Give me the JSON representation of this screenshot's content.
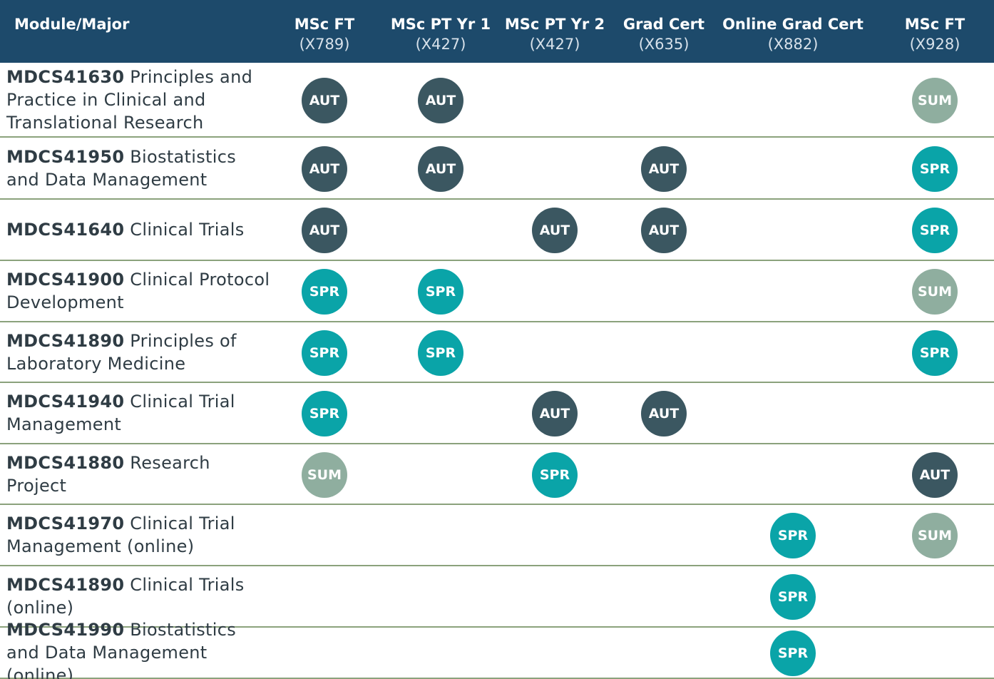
{
  "header": {
    "title": "Module/Major",
    "columns": [
      {
        "name": "MSc FT",
        "code": "(X789)"
      },
      {
        "name": "MSc PT Yr 1",
        "code": "(X427)"
      },
      {
        "name": "MSc PT Yr 2",
        "code": "(X427)"
      },
      {
        "name": "Grad Cert",
        "code": "(X635)"
      },
      {
        "name": "Online Grad Cert",
        "code": "(X882)"
      },
      {
        "name": "MSc FT",
        "code": "(X928)"
      }
    ]
  },
  "table": {
    "rows": [
      {
        "code": "MDCS41630",
        "title": "Principles and Practice in Clinical and Translational Research",
        "cells": [
          "AUT",
          "AUT",
          null,
          null,
          null,
          "SUM"
        ]
      },
      {
        "code": "MDCS41950",
        "title": "Biostatistics and Data Management",
        "cells": [
          "AUT",
          "AUT",
          null,
          "AUT",
          null,
          "SPR"
        ]
      },
      {
        "code": "MDCS41640",
        "title": "Clinical Trials",
        "cells": [
          "AUT",
          null,
          "AUT",
          "AUT",
          null,
          "SPR"
        ]
      },
      {
        "code": "MDCS41900",
        "title": "Clinical Protocol Development",
        "cells": [
          "SPR",
          "SPR",
          null,
          null,
          null,
          "SUM"
        ]
      },
      {
        "code": "MDCS41890",
        "title": "Principles of Laboratory Medicine",
        "cells": [
          "SPR",
          "SPR",
          null,
          null,
          null,
          "SPR"
        ]
      },
      {
        "code": "MDCS41940",
        "title": "Clinical Trial Management",
        "cells": [
          "SPR",
          null,
          "AUT",
          "AUT",
          null,
          null
        ]
      },
      {
        "code": "MDCS41880",
        "title": "Research Project",
        "cells": [
          "SUM",
          null,
          "SPR",
          null,
          null,
          "AUT"
        ]
      },
      {
        "code": "MDCS41970",
        "title": "Clinical Trial Management (online)",
        "cells": [
          null,
          null,
          null,
          null,
          "SPR",
          "SUM"
        ]
      },
      {
        "code": "MDCS41890",
        "title": "Clinical Trials (online)",
        "cells": [
          null,
          null,
          null,
          null,
          "SPR",
          null
        ]
      },
      {
        "code": "MDCS41990",
        "title": "Biostatistics and Data Management (online)",
        "cells": [
          null,
          null,
          null,
          null,
          "SPR",
          null
        ]
      }
    ]
  }
}
